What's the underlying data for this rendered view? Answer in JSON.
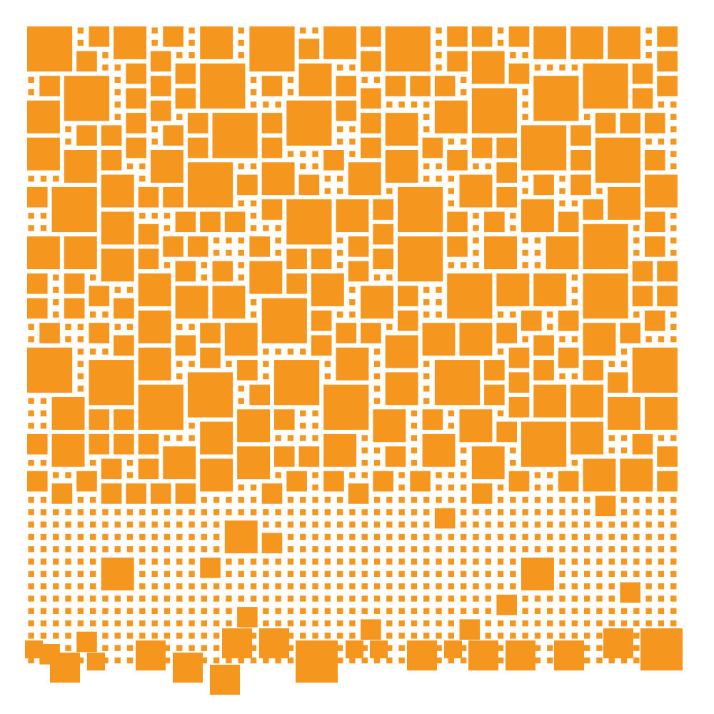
{
  "background_color": "#ffffff",
  "tile_color": "#f5961f",
  "pattern": "square-tile-mosaic"
}
